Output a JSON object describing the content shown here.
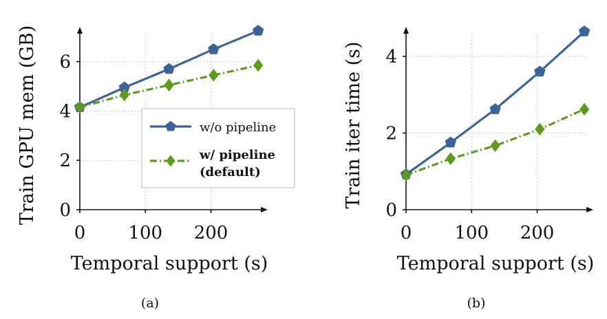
{
  "colors": {
    "blue": "#3a6399",
    "green": "#5e9a1e",
    "axis": "#111111"
  },
  "chart_data": [
    {
      "type": "line",
      "caption": "(a)",
      "xlabel": "Temporal support (s)",
      "ylabel": "Train GPU mem (GB)",
      "xlim": [
        0,
        275
      ],
      "ylim": [
        0,
        7.3
      ],
      "xticks": [
        0,
        100,
        200
      ],
      "yticks": [
        0,
        2,
        4,
        6
      ],
      "grid": true,
      "legend": {
        "placement": "lower-right",
        "entries": [
          {
            "label": "w/o pipeline",
            "bold": false
          },
          {
            "label": "w/ pipeline",
            "label2": "(default)",
            "bold": true
          }
        ]
      },
      "series": [
        {
          "name": "w/o pipeline",
          "marker": "pentagon",
          "x": [
            0,
            68,
            136,
            204,
            272
          ],
          "values": [
            4.15,
            4.95,
            5.7,
            6.5,
            7.25
          ]
        },
        {
          "name": "w/ pipeline (default)",
          "marker": "diamond",
          "x": [
            0,
            68,
            136,
            204,
            272
          ],
          "values": [
            4.15,
            4.65,
            5.05,
            5.45,
            5.85
          ]
        }
      ]
    },
    {
      "type": "line",
      "caption": "(b)",
      "xlabel": "Temporal support (s)",
      "ylabel": "Train iter time (s)",
      "xlim": [
        0,
        275
      ],
      "ylim": [
        0,
        4.7
      ],
      "xticks": [
        0,
        100,
        200
      ],
      "yticks": [
        0,
        2,
        4
      ],
      "grid": true,
      "series": [
        {
          "name": "w/o pipeline",
          "marker": "pentagon",
          "x": [
            0,
            68,
            136,
            204,
            272
          ],
          "values": [
            0.92,
            1.75,
            2.62,
            3.6,
            4.65
          ]
        },
        {
          "name": "w/ pipeline (default)",
          "marker": "diamond",
          "x": [
            0,
            68,
            136,
            204,
            272
          ],
          "values": [
            0.9,
            1.33,
            1.67,
            2.1,
            2.62
          ]
        }
      ]
    }
  ]
}
